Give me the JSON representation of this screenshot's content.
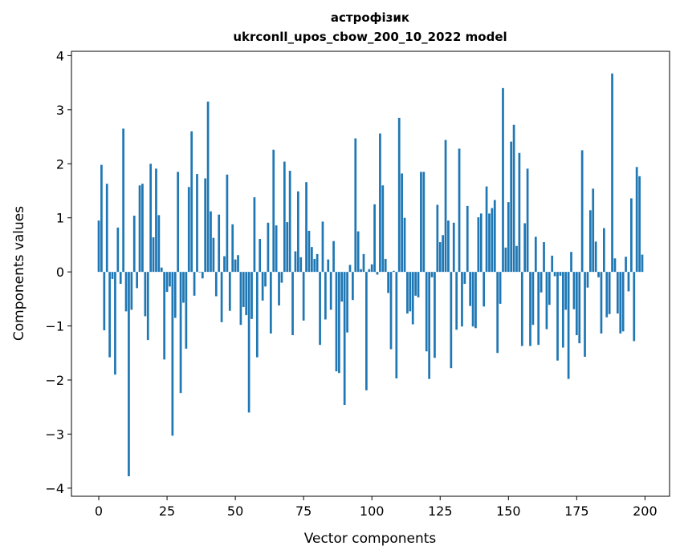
{
  "chart_data": {
    "type": "bar",
    "title": "астрофізик",
    "subtitle": "ukrconll_upos_cbow_200_10_2022 model",
    "xlabel": "Vector components",
    "ylabel": "Components values",
    "xlim": [
      -10,
      209
    ],
    "ylim": [
      -4.15,
      4.08
    ],
    "xticks": [
      0,
      25,
      50,
      75,
      100,
      125,
      150,
      175,
      200
    ],
    "yticks": [
      -4,
      -3,
      -2,
      -1,
      0,
      1,
      2,
      3,
      4
    ],
    "bar_color": "#1f77b4",
    "grid": false,
    "values": [
      0.95,
      1.98,
      -1.08,
      1.63,
      -1.58,
      -0.13,
      -1.9,
      0.82,
      -0.22,
      2.65,
      -0.73,
      -3.78,
      -0.7,
      1.04,
      -0.3,
      1.6,
      1.63,
      -0.82,
      -1.26,
      2.0,
      0.64,
      1.91,
      1.05,
      0.08,
      -1.62,
      -0.37,
      -0.27,
      -3.03,
      -0.85,
      1.85,
      -2.24,
      -0.57,
      -1.42,
      1.57,
      2.6,
      -0.44,
      1.81,
      -0.01,
      -0.12,
      1.73,
      3.15,
      1.12,
      0.63,
      -0.45,
      1.06,
      -0.93,
      0.29,
      1.8,
      -0.72,
      0.88,
      0.23,
      0.31,
      -0.98,
      -0.65,
      -0.8,
      -2.6,
      -0.87,
      1.38,
      -1.58,
      0.61,
      -0.53,
      -0.27,
      0.91,
      -1.14,
      2.26,
      0.86,
      -0.62,
      -0.2,
      2.04,
      0.92,
      1.87,
      -1.17,
      0.38,
      1.49,
      0.27,
      -0.9,
      1.66,
      0.76,
      0.46,
      0.24,
      0.33,
      -1.35,
      0.93,
      -0.88,
      0.23,
      -0.7,
      0.57,
      -1.84,
      -1.87,
      -0.55,
      -2.46,
      -1.12,
      0.13,
      -0.52,
      2.47,
      0.75,
      0.05,
      0.33,
      -2.19,
      0.05,
      0.14,
      1.25,
      -0.05,
      2.56,
      1.6,
      0.24,
      -0.39,
      -1.43,
      0.02,
      -1.97,
      2.85,
      1.82,
      1.0,
      -0.77,
      -0.73,
      -0.97,
      -0.44,
      -0.47,
      1.85,
      1.85,
      -1.47,
      -1.98,
      -0.1,
      -1.59,
      1.24,
      0.55,
      0.68,
      2.44,
      0.95,
      -1.78,
      0.91,
      -1.07,
      2.28,
      -1.01,
      -0.22,
      1.22,
      -0.63,
      -1.01,
      -1.04,
      1.01,
      1.08,
      -0.64,
      1.58,
      1.08,
      1.18,
      1.33,
      -1.5,
      -0.59,
      3.4,
      0.45,
      1.29,
      2.41,
      2.72,
      0.48,
      2.2,
      -1.37,
      0.9,
      1.91,
      -1.37,
      -0.98,
      0.65,
      -1.35,
      -0.38,
      0.55,
      -1.06,
      -0.61,
      0.3,
      -0.08,
      -1.64,
      -0.07,
      -1.4,
      -0.7,
      -1.98,
      0.37,
      -0.69,
      -1.17,
      -1.32,
      2.25,
      -1.57,
      -0.29,
      1.14,
      1.54,
      0.56,
      -0.1,
      -1.14,
      0.81,
      -0.84,
      -0.78,
      3.67,
      0.25,
      -0.77,
      -1.14,
      -1.1,
      0.28,
      -0.36,
      1.36,
      -1.28,
      1.94,
      1.77,
      0.32
    ]
  }
}
